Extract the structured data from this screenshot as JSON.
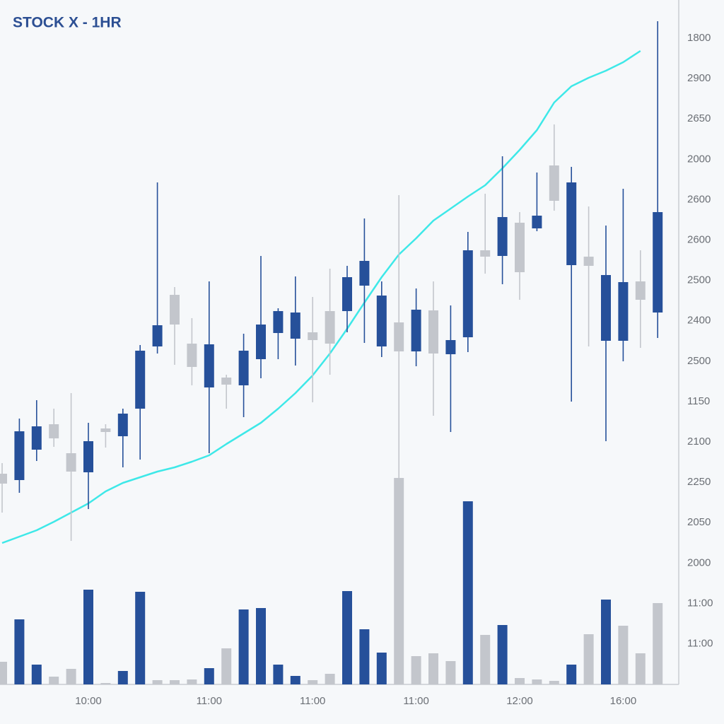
{
  "chart_data": {
    "type": "candlestick",
    "title": "STOCK X - 1HR",
    "categories": [
      null,
      null,
      null,
      null,
      null,
      "10:00",
      null,
      null,
      null,
      null,
      null,
      null,
      "11:00",
      null,
      null,
      null,
      null,
      null,
      "11:00",
      null,
      null,
      null,
      null,
      null,
      "11:00",
      null,
      null,
      null,
      null,
      null,
      "12:00",
      null,
      null,
      null,
      null,
      null,
      "16:00",
      null,
      null
    ],
    "open": [
      13.0,
      12.1,
      16.4,
      20.0,
      15.9,
      13.2,
      19.4,
      18.3,
      22.2,
      31.0,
      38.3,
      31.4,
      25.2,
      26.6,
      25.5,
      29.2,
      32.9,
      32.1,
      33.0,
      36.0,
      36.0,
      39.6,
      31.0,
      34.4,
      30.3,
      36.1,
      29.9,
      32.3,
      44.6,
      43.8,
      48.5,
      47.7,
      56.6,
      42.5,
      43.7,
      31.8,
      31.8,
      40.2,
      35.8
    ],
    "high": [
      14.5,
      20.8,
      23.4,
      22.2,
      24.4,
      20.2,
      20.0,
      22.2,
      31.2,
      54.2,
      39.4,
      35.0,
      40.2,
      27.0,
      32.8,
      43.8,
      36.4,
      40.9,
      38.0,
      42.0,
      42.4,
      49.1,
      40.2,
      52.4,
      39.2,
      40.2,
      36.8,
      47.2,
      52.6,
      57.9,
      50.0,
      55.6,
      62.4,
      56.4,
      50.8,
      48.1,
      53.3,
      44.6,
      77.0
    ],
    "low": [
      7.5,
      10.3,
      14.8,
      16.8,
      3.5,
      8.0,
      16.7,
      13.9,
      15.0,
      30.0,
      28.4,
      25.5,
      15.9,
      22.2,
      21.0,
      26.5,
      29.2,
      28.3,
      23.1,
      27.0,
      33.0,
      31.5,
      29.5,
      12.0,
      28.2,
      21.2,
      18.9,
      30.2,
      41.3,
      39.8,
      37.6,
      47.3,
      50.2,
      23.2,
      31.0,
      17.6,
      28.9,
      30.8,
      32.2
    ],
    "close": [
      11.6,
      19.0,
      19.7,
      18.0,
      13.3,
      17.6,
      18.9,
      21.5,
      30.4,
      34.0,
      34.1,
      28.1,
      31.3,
      25.6,
      30.4,
      34.1,
      36.0,
      35.8,
      31.9,
      31.4,
      40.8,
      43.1,
      38.2,
      30.3,
      36.2,
      30.0,
      31.9,
      44.6,
      43.7,
      49.3,
      41.5,
      49.5,
      51.6,
      54.2,
      42.4,
      41.1,
      40.1,
      37.6,
      50.0
    ],
    "up_color": "#26509a",
    "down_color": "#c3c6cc",
    "ylim": [
      0,
      80
    ],
    "moving_average": {
      "color": "#3ee8e8",
      "values": [
        3.2,
        4.1,
        5.0,
        6.2,
        7.5,
        8.8,
        10.5,
        11.7,
        12.5,
        13.3,
        13.9,
        14.7,
        15.6,
        17.2,
        18.7,
        20.2,
        22.2,
        24.4,
        26.9,
        30.0,
        33.5,
        37.2,
        40.8,
        44.0,
        46.3,
        48.8,
        50.5,
        52.2,
        53.8,
        56.2,
        58.8,
        61.6,
        65.5,
        67.8,
        69.0,
        70.0,
        71.2,
        72.8,
        null
      ]
    },
    "volume": [
      32,
      92,
      28,
      11,
      22,
      134,
      2,
      19,
      131,
      6,
      6,
      7,
      23,
      51,
      106,
      108,
      28,
      12,
      6,
      15,
      132,
      78,
      45,
      292,
      40,
      44,
      33,
      259,
      70,
      84,
      9,
      7,
      5,
      28,
      71,
      120,
      83,
      44,
      115
    ],
    "volume_colors": [
      "#c3c6cc",
      "#26509a",
      "#26509a",
      "#c3c6cc",
      "#c3c6cc",
      "#26509a",
      "#c3c6cc",
      "#26509a",
      "#26509a",
      "#c3c6cc",
      "#c3c6cc",
      "#c3c6cc",
      "#26509a",
      "#c3c6cc",
      "#26509a",
      "#26509a",
      "#26509a",
      "#26509a",
      "#c3c6cc",
      "#c3c6cc",
      "#26509a",
      "#26509a",
      "#26509a",
      "#c3c6cc",
      "#c3c6cc",
      "#c3c6cc",
      "#c3c6cc",
      "#26509a",
      "#c3c6cc",
      "#26509a",
      "#c3c6cc",
      "#c3c6cc",
      "#c3c6cc",
      "#26509a",
      "#c3c6cc",
      "#26509a",
      "#c3c6cc",
      "#c3c6cc",
      "#c3c6cc"
    ],
    "volume_ylim": [
      0,
      300
    ],
    "right_axis_labels": [
      "1800",
      "2900",
      "2650",
      "2000",
      "2600",
      "2600",
      "2500",
      "2400",
      "2500",
      "1150",
      "2100",
      "2250",
      "2050",
      "2000",
      "11:00",
      "11:00"
    ]
  }
}
